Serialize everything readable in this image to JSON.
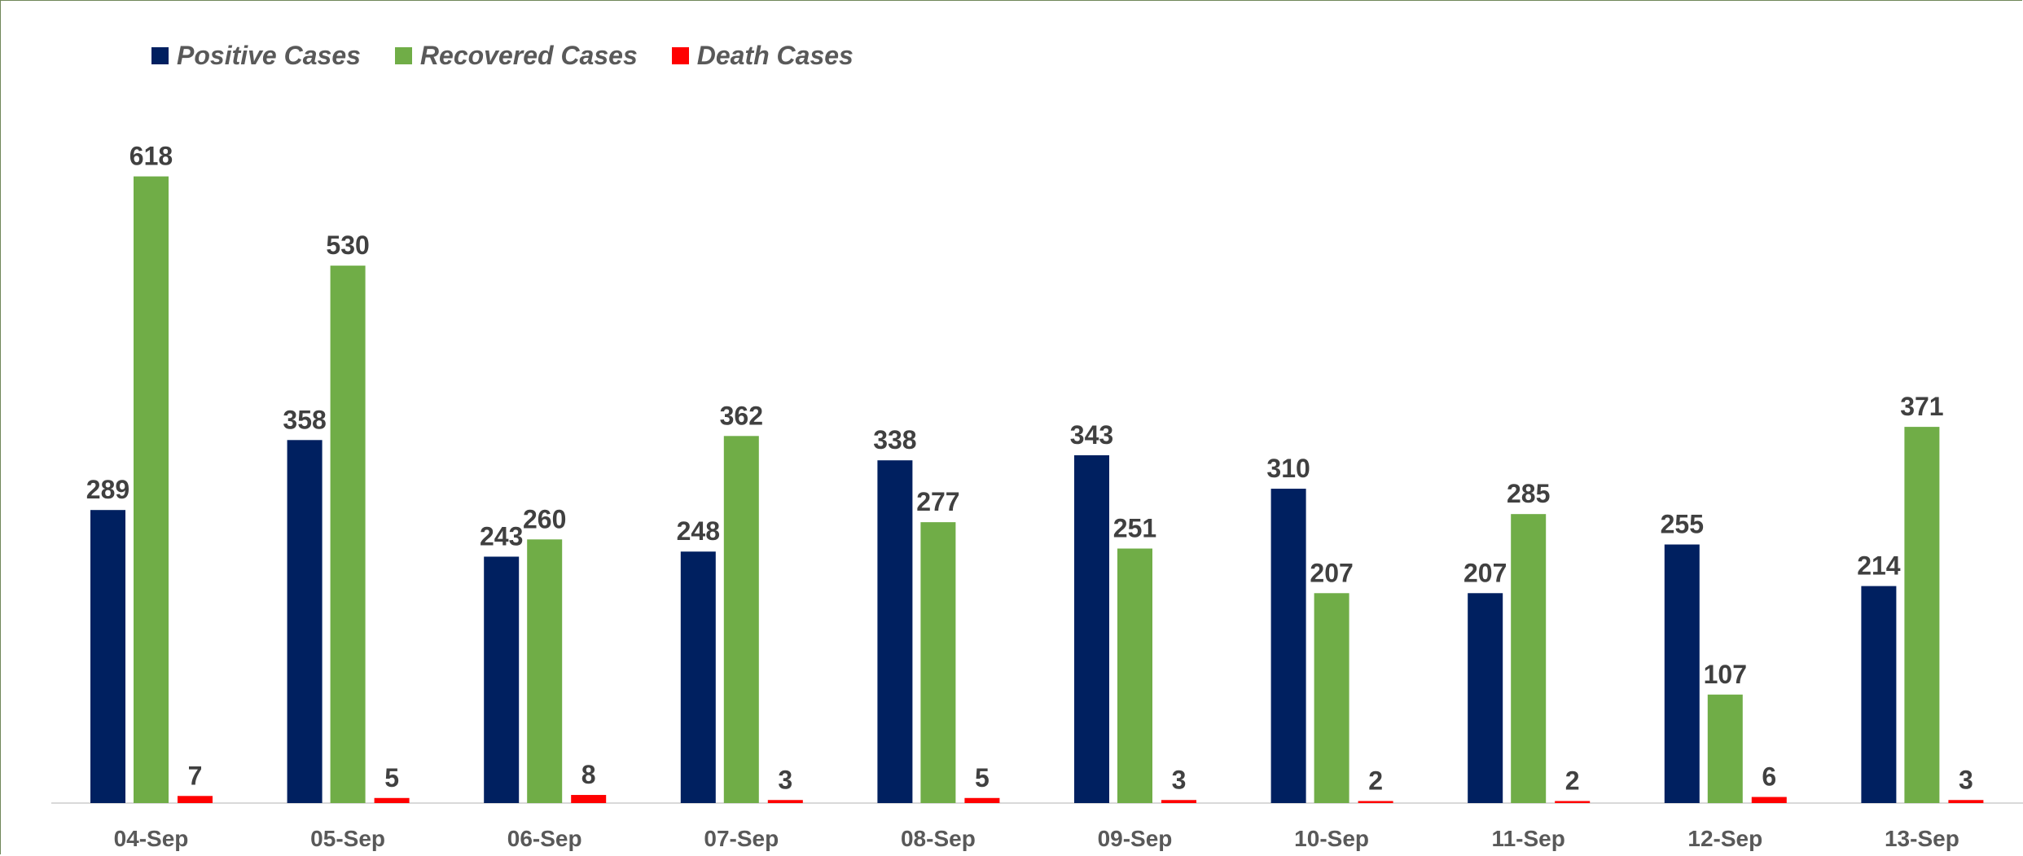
{
  "chart_data": {
    "type": "bar",
    "title": "",
    "xlabel": "",
    "ylabel": "",
    "categories": [
      "04-Sep",
      "05-Sep",
      "06-Sep",
      "07-Sep",
      "08-Sep",
      "09-Sep",
      "10-Sep",
      "11-Sep",
      "12-Sep",
      "13-Sep"
    ],
    "series": [
      {
        "name": "Positive Cases",
        "color": "#002060",
        "values": [
          289,
          358,
          243,
          248,
          338,
          343,
          310,
          207,
          255,
          214
        ]
      },
      {
        "name": "Recovered Cases",
        "color": "#70ad47",
        "values": [
          618,
          530,
          260,
          362,
          277,
          251,
          207,
          285,
          107,
          371
        ]
      },
      {
        "name": "Death Cases",
        "color": "#ff0000",
        "values": [
          7,
          5,
          8,
          3,
          5,
          3,
          2,
          2,
          6,
          3
        ]
      }
    ],
    "ylim": [
      0,
      700
    ],
    "grid": false,
    "legend_position": "top-left",
    "data_labels": true
  }
}
